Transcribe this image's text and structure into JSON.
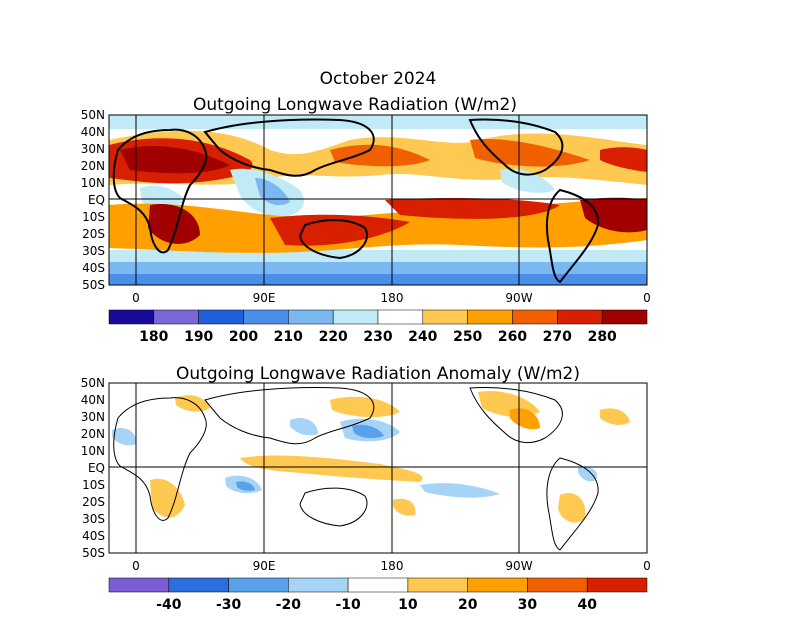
{
  "header": {
    "date": "October 2024",
    "map1_title": "Outgoing Longwave Radiation (W/m2)",
    "map2_title": "Outgoing Longwave Radiation Anomaly (W/m2)"
  },
  "axes": {
    "lat_ticks_top": [
      "50N",
      "40N",
      "30N",
      "20N",
      "10N",
      "EQ",
      "10S",
      "20S",
      "30S",
      "40S",
      "50S"
    ],
    "lat_ticks_bottom": [
      "50N",
      "40N",
      "30N",
      "20N",
      "10N",
      "EQ",
      "10S",
      "20S",
      "30S",
      "40S",
      "50S"
    ],
    "lon_ticks": [
      "0",
      "90E",
      "180",
      "90W",
      "0"
    ]
  },
  "colorbar_olr": {
    "labels": [
      "180",
      "190",
      "200",
      "210",
      "220",
      "230",
      "240",
      "250",
      "260",
      "270",
      "280"
    ],
    "colors": [
      "#1a0a99",
      "#7b68d6",
      "#2060dd",
      "#4a8ee8",
      "#7ab8f2",
      "#bfeaf6",
      "#ffffff",
      "#ffc850",
      "#ffa000",
      "#f06000",
      "#d82000",
      "#a00000"
    ]
  },
  "colorbar_anom": {
    "labels": [
      "-40",
      "-30",
      "-20",
      "-10",
      "10",
      "20",
      "30",
      "40"
    ],
    "colors": [
      "#7b5ed6",
      "#2a6ee0",
      "#5aa0ea",
      "#a6d4f6",
      "#ffffff",
      "#ffc850",
      "#ffa000",
      "#f06000",
      "#d82000"
    ]
  }
}
